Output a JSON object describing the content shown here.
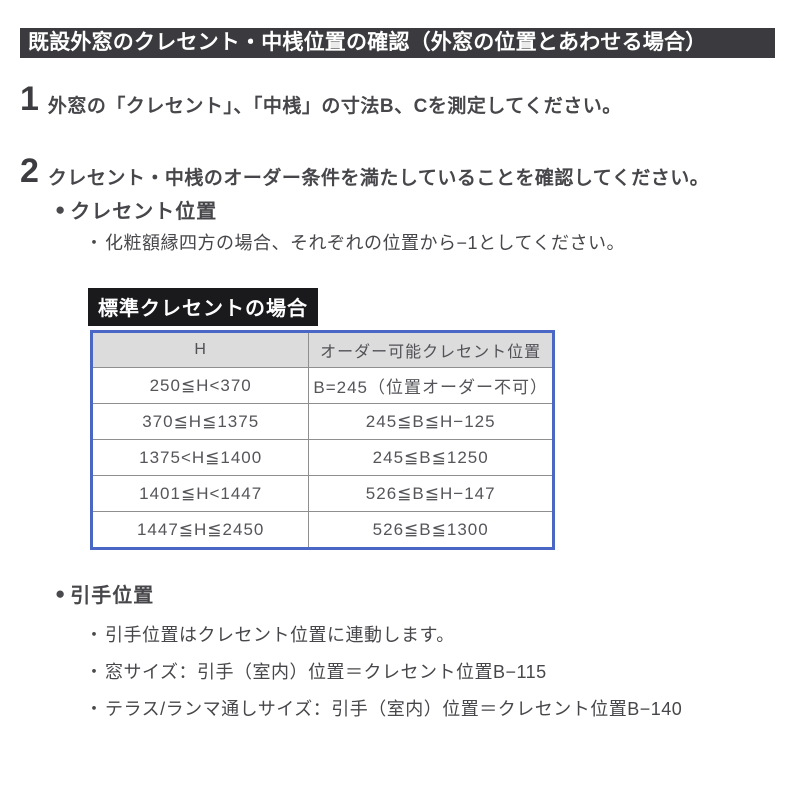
{
  "icons": {
    "bullet": "●",
    "sub_bullet": "・"
  },
  "title_bar": {
    "text": "既設外窓のクレセント・中桟位置の確認（外窓の位置とあわせる場合）"
  },
  "steps": [
    {
      "num": "1",
      "text": "外窓の「クレセント」、「中桟」の寸法B、Cを測定してください。"
    },
    {
      "num": "2",
      "text": "クレセント・中桟のオーダー条件を満たしていることを確認してください。"
    }
  ],
  "crescent_section": {
    "heading": "クレセント位置",
    "note": "化粧額縁四方の場合、それぞれの位置から−1としてください。",
    "table_label": "標準クレセントの場合",
    "table": {
      "headers": [
        "H",
        "オーダー可能クレセント位置"
      ],
      "rows": [
        [
          "250≦H<370",
          "B=245（位置オーダー不可）"
        ],
        [
          "370≦H≦1375",
          "245≦B≦H−125"
        ],
        [
          "1375<H≦1400",
          "245≦B≦1250"
        ],
        [
          "1401≦H<1447",
          "526≦B≦H−147"
        ],
        [
          "1447≦H≦2450",
          "526≦B≦1300"
        ]
      ]
    }
  },
  "handle_section": {
    "heading": "引手位置",
    "bullets": [
      "引手位置はクレセント位置に連動します。",
      "窓サイズ：引手（室内）位置＝クレセント位置B−115",
      "テラス/ランマ通しサイズ：引手（室内）位置＝クレセント位置B−140"
    ]
  },
  "colors": {
    "title_bar_bg": "#3b3b3f",
    "table_label_bg": "#1a1a1c",
    "table_border": "#4a67c6",
    "table_header_bg": "#dcdcdd",
    "body_text": "#46464a"
  }
}
